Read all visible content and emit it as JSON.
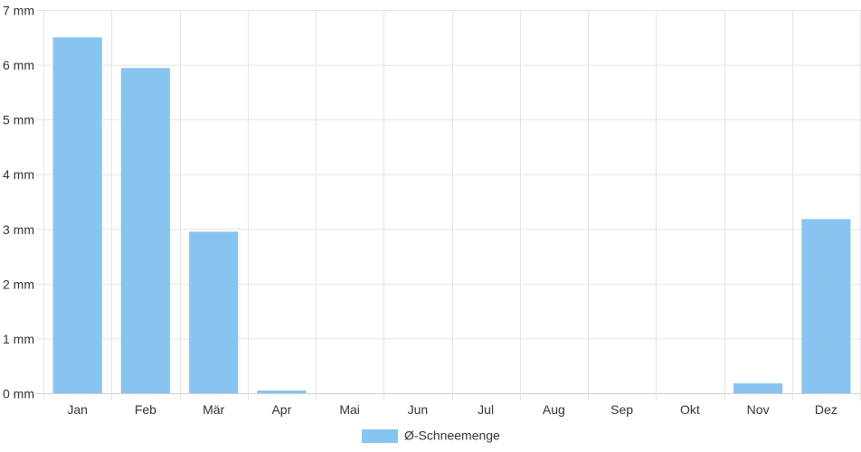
{
  "chart_data": {
    "type": "bar",
    "categories": [
      "Jan",
      "Feb",
      "Mär",
      "Apr",
      "Mai",
      "Jun",
      "Jul",
      "Aug",
      "Sep",
      "Okt",
      "Nov",
      "Dez"
    ],
    "series": [
      {
        "name": "Ø-Schneemenge",
        "values": [
          6.5,
          5.94,
          2.95,
          0.05,
          0,
          0,
          0,
          0,
          0,
          0,
          0.18,
          3.18
        ],
        "color": "#88c4f0"
      }
    ],
    "y_ticks": [
      "0 mm",
      "1 mm",
      "2 mm",
      "3 mm",
      "4 mm",
      "5 mm",
      "6 mm",
      "7 mm"
    ],
    "ylim": [
      0,
      7
    ],
    "grid": true,
    "legend_position": "bottom"
  }
}
